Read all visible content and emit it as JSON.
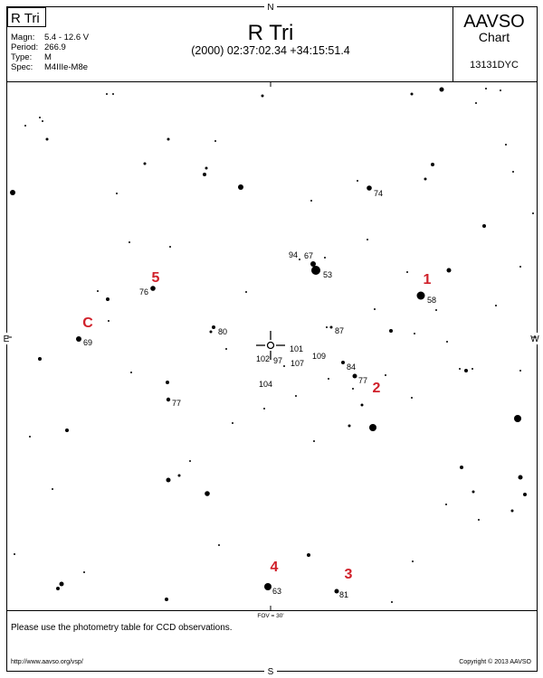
{
  "header": {
    "star_name_box": "R Tri",
    "title": "R Tri",
    "coords": "(2000) 02:37:02.34  +34:15:51.4",
    "info": [
      {
        "label": "Magn:",
        "value": "5.4 - 12.6 V"
      },
      {
        "label": "Period:",
        "value": "266.9"
      },
      {
        "label": "Type:",
        "value": "M"
      },
      {
        "label": "Spec:",
        "value": "M4IIIe-M8e"
      }
    ],
    "aavso": "AAVSO",
    "chart_word": "Chart",
    "chart_id": "13131DYC"
  },
  "compass": {
    "n": "N",
    "s": "S",
    "e": "E",
    "w": "W"
  },
  "fov_label": "FOV = 30'",
  "footer": {
    "note": "Please use the photometry table for CCD observations.",
    "url": "http://www.aavso.org/vsp/",
    "copyright": "Copyright © 2013 AAVSO"
  },
  "comparison_labels": [
    {
      "text": "94"
    },
    {
      "text": "67"
    },
    {
      "text": "53"
    },
    {
      "text": "74"
    },
    {
      "text": "58"
    },
    {
      "text": "76"
    },
    {
      "text": "80"
    },
    {
      "text": "69"
    },
    {
      "text": "87"
    },
    {
      "text": "101"
    },
    {
      "text": "109"
    },
    {
      "text": "102"
    },
    {
      "text": "97"
    },
    {
      "text": "107"
    },
    {
      "text": "84"
    },
    {
      "text": "77"
    },
    {
      "text": "104"
    },
    {
      "text": "77"
    },
    {
      "text": "63"
    },
    {
      "text": "81"
    }
  ],
  "marker_labels": [
    {
      "text": "1"
    },
    {
      "text": "2"
    },
    {
      "text": "3"
    },
    {
      "text": "4"
    },
    {
      "text": "5"
    },
    {
      "text": "C"
    }
  ],
  "colors": {
    "marker": "#d0202a",
    "ink": "#000000"
  }
}
